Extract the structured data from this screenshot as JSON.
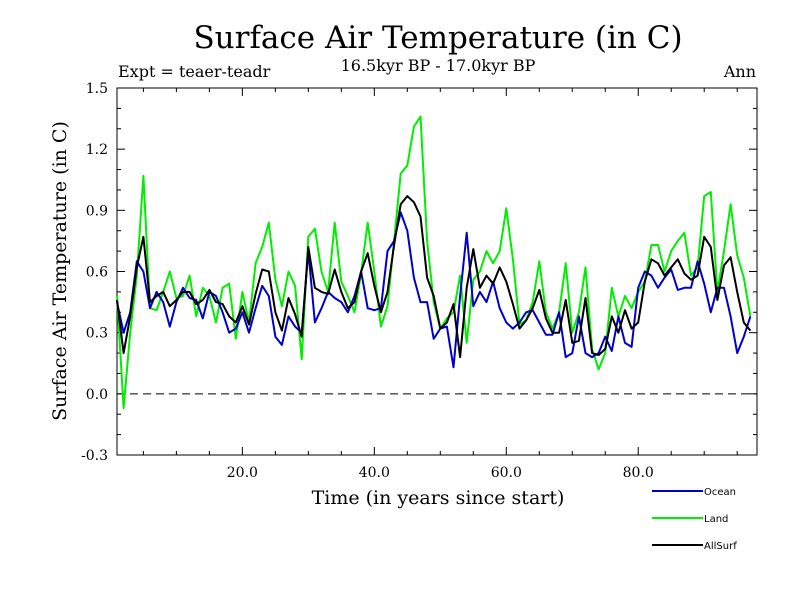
{
  "chart_data": {
    "type": "line",
    "title": "Surface Air Temperature (in C)",
    "subtitle": "16.5kyr BP - 17.0kyr BP",
    "experiment": "Expt = teaer-teadr",
    "period": "Ann",
    "xlabel": "Time (in years since start)",
    "ylabel": "Surface Air Temperature (in C)",
    "xlim": [
      1,
      98
    ],
    "ylim": [
      -0.3,
      1.5
    ],
    "xticks": [
      20,
      40,
      60,
      80
    ],
    "xtick_labels": [
      "20.0",
      "40.0",
      "60.0",
      "80.0"
    ],
    "yticks": [
      -0.3,
      0.0,
      0.3,
      0.6,
      0.9,
      1.2,
      1.5
    ],
    "ytick_labels": [
      "-0.3",
      "0.0",
      "0.3",
      "0.6",
      "0.9",
      "1.2",
      "1.5"
    ],
    "reference_line": 0.0,
    "x_start": 1,
    "series": [
      {
        "name": "Ocean",
        "color": "#0000cc",
        "values": [
          0.45,
          0.3,
          0.4,
          0.65,
          0.6,
          0.42,
          0.5,
          0.45,
          0.33,
          0.45,
          0.52,
          0.47,
          0.46,
          0.37,
          0.5,
          0.48,
          0.4,
          0.3,
          0.32,
          0.4,
          0.3,
          0.42,
          0.53,
          0.48,
          0.28,
          0.24,
          0.38,
          0.33,
          0.3,
          0.7,
          0.35,
          0.42,
          0.5,
          0.47,
          0.45,
          0.4,
          0.48,
          0.6,
          0.42,
          0.41,
          0.42,
          0.7,
          0.75,
          0.89,
          0.8,
          0.57,
          0.45,
          0.45,
          0.27,
          0.32,
          0.33,
          0.13,
          0.48,
          0.79,
          0.43,
          0.5,
          0.45,
          0.55,
          0.42,
          0.35,
          0.32,
          0.35,
          0.4,
          0.41,
          0.35,
          0.29,
          0.29,
          0.4,
          0.18,
          0.2,
          0.38,
          0.2,
          0.18,
          0.2,
          0.28,
          0.21,
          0.38,
          0.25,
          0.23,
          0.52,
          0.6,
          0.58,
          0.52,
          0.57,
          0.61,
          0.51,
          0.52,
          0.52,
          0.65,
          0.54,
          0.4,
          0.52,
          0.52,
          0.38,
          0.2,
          0.28,
          0.38
        ]
      },
      {
        "name": "Land",
        "color": "#00ee00",
        "values": [
          0.48,
          -0.07,
          0.3,
          0.58,
          1.07,
          0.42,
          0.41,
          0.5,
          0.6,
          0.47,
          0.48,
          0.58,
          0.38,
          0.52,
          0.48,
          0.35,
          0.52,
          0.54,
          0.27,
          0.5,
          0.35,
          0.64,
          0.72,
          0.84,
          0.56,
          0.43,
          0.6,
          0.53,
          0.17,
          0.77,
          0.81,
          0.6,
          0.5,
          0.84,
          0.55,
          0.48,
          0.4,
          0.59,
          0.84,
          0.6,
          0.33,
          0.43,
          0.75,
          1.08,
          1.12,
          1.31,
          1.36,
          0.75,
          0.45,
          0.32,
          0.37,
          0.4,
          0.58,
          0.25,
          0.56,
          0.6,
          0.7,
          0.64,
          0.7,
          0.91,
          0.66,
          0.34,
          0.36,
          0.45,
          0.65,
          0.4,
          0.32,
          0.4,
          0.64,
          0.3,
          0.4,
          0.62,
          0.22,
          0.12,
          0.2,
          0.52,
          0.38,
          0.48,
          0.42,
          0.5,
          0.55,
          0.73,
          0.73,
          0.6,
          0.7,
          0.75,
          0.79,
          0.58,
          0.62,
          0.97,
          0.99,
          0.5,
          0.7,
          0.93,
          0.68,
          0.57,
          0.38
        ]
      },
      {
        "name": "AllSurf",
        "color": "#000000",
        "values": [
          0.46,
          0.2,
          0.38,
          0.62,
          0.77,
          0.45,
          0.48,
          0.5,
          0.43,
          0.46,
          0.5,
          0.5,
          0.44,
          0.46,
          0.51,
          0.45,
          0.44,
          0.38,
          0.35,
          0.43,
          0.34,
          0.49,
          0.61,
          0.6,
          0.4,
          0.31,
          0.47,
          0.39,
          0.28,
          0.72,
          0.52,
          0.5,
          0.49,
          0.61,
          0.5,
          0.42,
          0.45,
          0.6,
          0.69,
          0.53,
          0.4,
          0.5,
          0.73,
          0.93,
          0.97,
          0.94,
          0.87,
          0.57,
          0.48,
          0.32,
          0.35,
          0.44,
          0.18,
          0.52,
          0.71,
          0.52,
          0.58,
          0.54,
          0.62,
          0.55,
          0.44,
          0.32,
          0.36,
          0.42,
          0.51,
          0.37,
          0.3,
          0.3,
          0.46,
          0.25,
          0.26,
          0.47,
          0.2,
          0.19,
          0.22,
          0.38,
          0.3,
          0.41,
          0.32,
          0.35,
          0.55,
          0.66,
          0.64,
          0.58,
          0.62,
          0.66,
          0.59,
          0.56,
          0.58,
          0.77,
          0.72,
          0.46,
          0.63,
          0.67,
          0.5,
          0.35,
          0.31
        ]
      }
    ]
  }
}
